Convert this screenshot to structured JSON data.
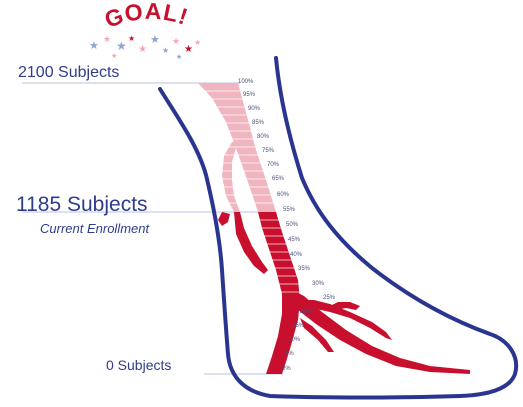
{
  "goal": {
    "text": "GOAL!"
  },
  "labels": {
    "top": "2100 Subjects",
    "current": "1185 Subjects",
    "current_sub": "Current Enrollment",
    "bottom": "0 Subjects"
  },
  "scale_ticks": [
    "100%",
    "95%",
    "90%",
    "85%",
    "80%",
    "75%",
    "70%",
    "65%",
    "60%",
    "55%",
    "50%",
    "45%",
    "40%",
    "35%",
    "30%",
    "25%",
    "20%",
    "15%",
    "10%",
    "5%",
    "0%"
  ],
  "progress": {
    "goal_subjects": 2100,
    "current_subjects": 1185,
    "fraction": 0.564
  },
  "colors": {
    "outline": "#2a3590",
    "fill_done": "#c8102e",
    "fill_remaining": "#f1b5c0",
    "goal_text": "#c8102e",
    "stars": [
      "#8fa3d6",
      "#f4a6b6",
      "#c8102e"
    ]
  }
}
